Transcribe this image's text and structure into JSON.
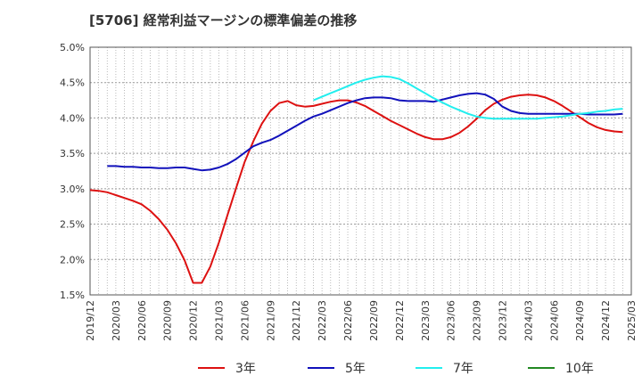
{
  "chart_data": {
    "type": "line",
    "title": "[5706]  経常利益マージンの標準偏差の推移",
    "xlabel": "",
    "ylabel": "",
    "ylim": [
      1.5,
      5.0
    ],
    "y_ticks": [
      "5.0%",
      "4.5%",
      "4.0%",
      "3.5%",
      "3.0%",
      "2.5%",
      "2.0%",
      "1.5%"
    ],
    "x_ticks": [
      "2019/12",
      "2020/03",
      "2020/06",
      "2020/09",
      "2020/12",
      "2021/03",
      "2021/06",
      "2021/09",
      "2021/12",
      "2022/03",
      "2022/06",
      "2022/09",
      "2022/12",
      "2023/03",
      "2023/06",
      "2023/09",
      "2023/12",
      "2024/03",
      "2024/06",
      "2024/09",
      "2024/12",
      "2025/03"
    ],
    "grid": true,
    "legend_position": "bottom",
    "series": [
      {
        "name": "3年",
        "color": "#dd1111",
        "points": [
          [
            0,
            2.98
          ],
          [
            1,
            2.97
          ],
          [
            2,
            2.95
          ],
          [
            3,
            2.91
          ],
          [
            4,
            2.87
          ],
          [
            5,
            2.83
          ],
          [
            6,
            2.78
          ],
          [
            7,
            2.69
          ],
          [
            8,
            2.57
          ],
          [
            9,
            2.42
          ],
          [
            10,
            2.23
          ],
          [
            11,
            1.99
          ],
          [
            12,
            1.67
          ],
          [
            13,
            1.67
          ],
          [
            14,
            1.9
          ],
          [
            15,
            2.24
          ],
          [
            16,
            2.63
          ],
          [
            17,
            3.01
          ],
          [
            18,
            3.38
          ],
          [
            19,
            3.67
          ],
          [
            20,
            3.92
          ],
          [
            21,
            4.1
          ],
          [
            22,
            4.21
          ],
          [
            23,
            4.24
          ],
          [
            24,
            4.18
          ],
          [
            25,
            4.16
          ],
          [
            26,
            4.17
          ],
          [
            27,
            4.2
          ],
          [
            28,
            4.23
          ],
          [
            29,
            4.25
          ],
          [
            30,
            4.25
          ],
          [
            31,
            4.22
          ],
          [
            32,
            4.17
          ],
          [
            33,
            4.1
          ],
          [
            34,
            4.03
          ],
          [
            35,
            3.96
          ],
          [
            36,
            3.9
          ],
          [
            37,
            3.84
          ],
          [
            38,
            3.78
          ],
          [
            39,
            3.73
          ],
          [
            40,
            3.7
          ],
          [
            41,
            3.7
          ],
          [
            42,
            3.73
          ],
          [
            43,
            3.79
          ],
          [
            44,
            3.88
          ],
          [
            45,
            3.99
          ],
          [
            46,
            4.11
          ],
          [
            47,
            4.2
          ],
          [
            48,
            4.26
          ],
          [
            49,
            4.3
          ],
          [
            50,
            4.32
          ],
          [
            51,
            4.33
          ],
          [
            52,
            4.32
          ],
          [
            53,
            4.29
          ],
          [
            54,
            4.24
          ],
          [
            55,
            4.17
          ],
          [
            56,
            4.09
          ],
          [
            57,
            4.01
          ],
          [
            58,
            3.93
          ],
          [
            59,
            3.87
          ],
          [
            60,
            3.83
          ],
          [
            61,
            3.81
          ],
          [
            62,
            3.8
          ]
        ]
      },
      {
        "name": "5年",
        "color": "#1111bb",
        "points": [
          [
            2,
            3.32
          ],
          [
            3,
            3.32
          ],
          [
            4,
            3.31
          ],
          [
            5,
            3.31
          ],
          [
            6,
            3.3
          ],
          [
            7,
            3.3
          ],
          [
            8,
            3.29
          ],
          [
            9,
            3.29
          ],
          [
            10,
            3.3
          ],
          [
            11,
            3.3
          ],
          [
            12,
            3.28
          ],
          [
            13,
            3.26
          ],
          [
            14,
            3.27
          ],
          [
            15,
            3.3
          ],
          [
            16,
            3.35
          ],
          [
            17,
            3.42
          ],
          [
            18,
            3.51
          ],
          [
            19,
            3.6
          ],
          [
            20,
            3.65
          ],
          [
            21,
            3.69
          ],
          [
            22,
            3.75
          ],
          [
            23,
            3.82
          ],
          [
            24,
            3.89
          ],
          [
            25,
            3.96
          ],
          [
            26,
            4.02
          ],
          [
            27,
            4.06
          ],
          [
            28,
            4.11
          ],
          [
            29,
            4.16
          ],
          [
            30,
            4.21
          ],
          [
            31,
            4.25
          ],
          [
            32,
            4.28
          ],
          [
            33,
            4.29
          ],
          [
            34,
            4.29
          ],
          [
            35,
            4.28
          ],
          [
            36,
            4.25
          ],
          [
            37,
            4.24
          ],
          [
            38,
            4.24
          ],
          [
            39,
            4.24
          ],
          [
            40,
            4.23
          ],
          [
            41,
            4.26
          ],
          [
            42,
            4.29
          ],
          [
            43,
            4.32
          ],
          [
            44,
            4.34
          ],
          [
            45,
            4.35
          ],
          [
            46,
            4.33
          ],
          [
            47,
            4.27
          ],
          [
            48,
            4.16
          ],
          [
            49,
            4.1
          ],
          [
            50,
            4.07
          ],
          [
            51,
            4.06
          ],
          [
            52,
            4.06
          ],
          [
            53,
            4.06
          ],
          [
            54,
            4.06
          ],
          [
            55,
            4.06
          ],
          [
            56,
            4.06
          ],
          [
            57,
            4.06
          ],
          [
            58,
            4.05
          ],
          [
            59,
            4.05
          ],
          [
            60,
            4.05
          ],
          [
            61,
            4.05
          ],
          [
            62,
            4.06
          ]
        ]
      },
      {
        "name": "7年",
        "color": "#22eeee",
        "points": [
          [
            26,
            4.25
          ],
          [
            27,
            4.3
          ],
          [
            28,
            4.35
          ],
          [
            29,
            4.4
          ],
          [
            30,
            4.45
          ],
          [
            31,
            4.5
          ],
          [
            32,
            4.54
          ],
          [
            33,
            4.57
          ],
          [
            34,
            4.59
          ],
          [
            35,
            4.58
          ],
          [
            36,
            4.55
          ],
          [
            37,
            4.49
          ],
          [
            38,
            4.42
          ],
          [
            39,
            4.35
          ],
          [
            40,
            4.28
          ],
          [
            41,
            4.22
          ],
          [
            42,
            4.16
          ],
          [
            43,
            4.11
          ],
          [
            44,
            4.06
          ],
          [
            45,
            4.02
          ],
          [
            46,
            4.0
          ],
          [
            47,
            3.99
          ],
          [
            48,
            3.99
          ],
          [
            49,
            3.99
          ],
          [
            50,
            3.99
          ],
          [
            51,
            3.99
          ],
          [
            52,
            3.99
          ],
          [
            53,
            4.0
          ],
          [
            54,
            4.01
          ],
          [
            55,
            4.02
          ],
          [
            56,
            4.04
          ],
          [
            57,
            4.06
          ],
          [
            58,
            4.07
          ],
          [
            59,
            4.09
          ],
          [
            60,
            4.1
          ],
          [
            61,
            4.12
          ],
          [
            62,
            4.13
          ]
        ]
      },
      {
        "name": "10年",
        "color": "#228822",
        "points": []
      }
    ]
  }
}
